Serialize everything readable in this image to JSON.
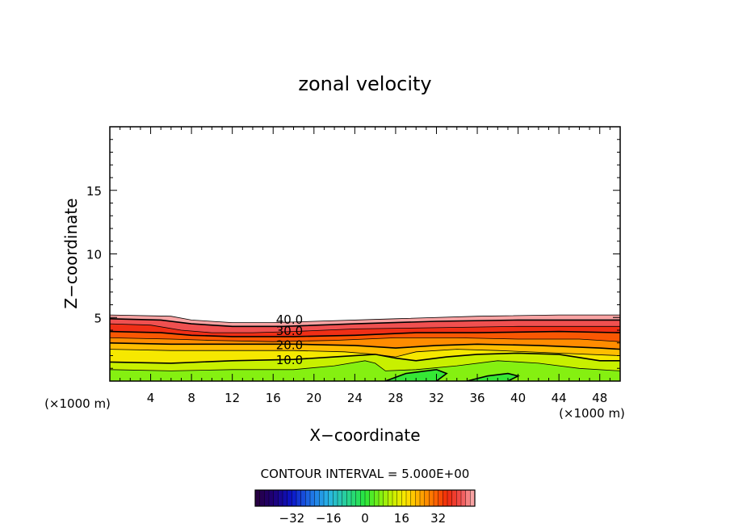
{
  "chart_data": {
    "type": "contour",
    "title": "zonal velocity",
    "xlabel": "X−coordinate",
    "ylabel": "Z−coordinate",
    "x_unit_left": "(×1000 m)",
    "x_unit_right": "(×1000 m)",
    "xlim": [
      0,
      50
    ],
    "ylim": [
      0,
      20
    ],
    "x_ticks": [
      4,
      8,
      12,
      16,
      20,
      24,
      28,
      32,
      36,
      40,
      44,
      48
    ],
    "y_ticks": [
      5,
      10,
      15
    ],
    "contour_interval_text": "CONTOUR INTERVAL = 5.000E+00",
    "contour_labels": [
      {
        "text": "40.0",
        "x": 17.6,
        "z": 4.9
      },
      {
        "text": "30.0",
        "x": 17.6,
        "z": 4.0
      },
      {
        "text": "20.0",
        "x": 17.6,
        "z": 2.9
      },
      {
        "text": "10.0",
        "x": 17.6,
        "z": 1.7
      }
    ],
    "contours": [
      {
        "value": 45,
        "points": [
          [
            0,
            5.2
          ],
          [
            6,
            5.1
          ],
          [
            8,
            4.8
          ],
          [
            12,
            4.6
          ],
          [
            16,
            4.6
          ],
          [
            20,
            4.7
          ],
          [
            28,
            4.9
          ],
          [
            36,
            5.1
          ],
          [
            44,
            5.2
          ],
          [
            50,
            5.2
          ]
        ]
      },
      {
        "value": 40,
        "points": [
          [
            0,
            4.9
          ],
          [
            5,
            4.8
          ],
          [
            8,
            4.5
          ],
          [
            12,
            4.3
          ],
          [
            17,
            4.3
          ],
          [
            24,
            4.5
          ],
          [
            32,
            4.7
          ],
          [
            40,
            4.8
          ],
          [
            50,
            4.8
          ]
        ]
      },
      {
        "value": 35,
        "points": [
          [
            0,
            4.5
          ],
          [
            4,
            4.4
          ],
          [
            7,
            4.0
          ],
          [
            10,
            3.8
          ],
          [
            14,
            3.8
          ],
          [
            18,
            3.9
          ],
          [
            24,
            4.1
          ],
          [
            32,
            4.2
          ],
          [
            40,
            4.3
          ],
          [
            50,
            4.3
          ]
        ]
      },
      {
        "value": 30,
        "points": [
          [
            0,
            3.9
          ],
          [
            5,
            3.8
          ],
          [
            8,
            3.6
          ],
          [
            12,
            3.5
          ],
          [
            18,
            3.5
          ],
          [
            24,
            3.6
          ],
          [
            30,
            3.8
          ],
          [
            36,
            3.8
          ],
          [
            44,
            3.9
          ],
          [
            50,
            3.8
          ]
        ]
      },
      {
        "value": 25,
        "points": [
          [
            0,
            3.4
          ],
          [
            6,
            3.3
          ],
          [
            10,
            3.2
          ],
          [
            16,
            3.1
          ],
          [
            22,
            3.2
          ],
          [
            28,
            3.4
          ],
          [
            34,
            3.4
          ],
          [
            40,
            3.3
          ],
          [
            46,
            3.3
          ],
          [
            50,
            3.1
          ]
        ]
      },
      {
        "value": 20,
        "points": [
          [
            0,
            3.0
          ],
          [
            6,
            2.9
          ],
          [
            12,
            2.9
          ],
          [
            18,
            2.9
          ],
          [
            24,
            2.8
          ],
          [
            28,
            2.6
          ],
          [
            32,
            2.8
          ],
          [
            36,
            2.9
          ],
          [
            42,
            2.8
          ],
          [
            48,
            2.6
          ],
          [
            50,
            2.5
          ]
        ]
      },
      {
        "value": 15,
        "points": [
          [
            0,
            2.5
          ],
          [
            6,
            2.4
          ],
          [
            12,
            2.4
          ],
          [
            18,
            2.4
          ],
          [
            23,
            2.3
          ],
          [
            26,
            2.1
          ],
          [
            28,
            1.9
          ],
          [
            30,
            2.3
          ],
          [
            34,
            2.5
          ],
          [
            38,
            2.4
          ],
          [
            44,
            2.2
          ],
          [
            50,
            2.0
          ]
        ]
      },
      {
        "value": 10,
        "points": [
          [
            0,
            1.5
          ],
          [
            6,
            1.4
          ],
          [
            12,
            1.6
          ],
          [
            18,
            1.7
          ],
          [
            22,
            1.9
          ],
          [
            26,
            2.1
          ],
          [
            28,
            1.8
          ],
          [
            30,
            1.6
          ],
          [
            33,
            1.9
          ],
          [
            36,
            2.1
          ],
          [
            40,
            2.2
          ],
          [
            44,
            2.1
          ],
          [
            48,
            1.6
          ],
          [
            50,
            1.6
          ]
        ]
      },
      {
        "value": 5,
        "points": [
          [
            0,
            0.9
          ],
          [
            6,
            0.8
          ],
          [
            12,
            0.9
          ],
          [
            18,
            0.9
          ],
          [
            22,
            1.2
          ],
          [
            25,
            1.6
          ],
          [
            26,
            1.4
          ],
          [
            27,
            0.8
          ],
          [
            30,
            0.9
          ],
          [
            34,
            1.2
          ],
          [
            38,
            1.6
          ],
          [
            42,
            1.4
          ],
          [
            46,
            1.0
          ],
          [
            50,
            0.8
          ]
        ]
      },
      {
        "value": 0,
        "points": [
          [
            27,
            0
          ],
          [
            29,
            0.6
          ],
          [
            32,
            0.9
          ],
          [
            33,
            0.6
          ],
          [
            32,
            0
          ]
        ]
      },
      {
        "value": 0,
        "points": [
          [
            35,
            0
          ],
          [
            37,
            0.4
          ],
          [
            39,
            0.6
          ],
          [
            40,
            0.4
          ],
          [
            39,
            0
          ]
        ]
      }
    ],
    "colorbar": {
      "ticks": [
        "−32",
        "−16",
        "0",
        "16",
        "32"
      ],
      "tick_values": [
        -32,
        -16,
        0,
        16,
        32
      ],
      "range": [
        -48,
        48
      ]
    }
  }
}
